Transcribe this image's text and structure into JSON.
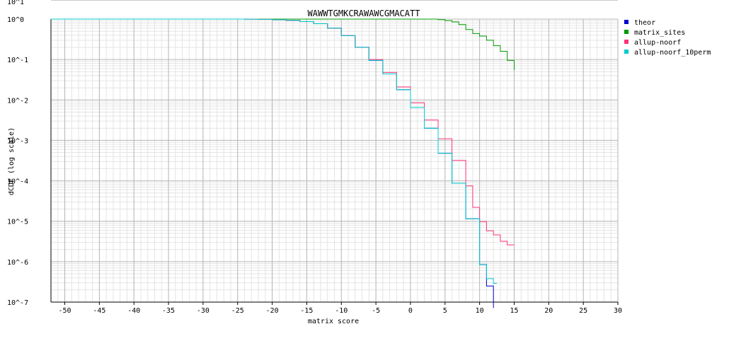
{
  "chart_data": {
    "type": "line",
    "title": "WAWWTGMKCRAWAWCGMACATT",
    "xlabel": "matrix score",
    "ylabel": "dCDF (log scale)",
    "top_partial_label": "10^1",
    "x_scale": "linear",
    "y_scale": "log",
    "xlim": [
      -52,
      30
    ],
    "ylim_exponents": [
      -7,
      0
    ],
    "xticks": [
      -50,
      -45,
      -40,
      -35,
      -30,
      -25,
      -20,
      -15,
      -10,
      -5,
      0,
      5,
      10,
      15,
      20,
      25,
      30
    ],
    "yticks": [
      "10^0",
      "10^-1",
      "10^-2",
      "10^-3",
      "10^-4",
      "10^-5",
      "10^-6",
      "10^-7"
    ],
    "grid": true,
    "legend_position": "right",
    "series": [
      {
        "name": "theor",
        "color": "#0000cc",
        "x": [
          -52,
          -30,
          -26,
          -24,
          -22,
          -20,
          -18,
          -16,
          -14,
          -12,
          -10,
          -8,
          -6,
          -4,
          -2,
          0,
          2,
          4,
          6,
          8,
          10,
          11,
          12
        ],
        "y": [
          1.0,
          0.9995,
          0.998,
          0.994,
          0.985,
          0.965,
          0.93,
          0.87,
          0.77,
          0.6,
          0.39,
          0.2,
          0.095,
          0.044,
          0.018,
          0.0065,
          0.002,
          0.00048,
          8.7e-05,
          1.15e-05,
          8.5e-07,
          2.5e-07,
          7.2e-08
        ]
      },
      {
        "name": "matrix_sites",
        "color": "#009900",
        "x": [
          -52,
          3,
          4,
          5,
          6,
          7,
          8,
          9,
          10,
          11,
          12,
          13,
          14,
          15
        ],
        "y": [
          1.0,
          1.0,
          0.97,
          0.92,
          0.85,
          0.73,
          0.55,
          0.44,
          0.38,
          0.3,
          0.22,
          0.16,
          0.095,
          0.055
        ]
      },
      {
        "name": "allup-noorf",
        "color": "#ff3377",
        "x": [
          -52,
          -30,
          -26,
          -24,
          -22,
          -20,
          -18,
          -16,
          -14,
          -12,
          -10,
          -8,
          -6,
          -4,
          -2,
          0,
          2,
          4,
          6,
          8,
          9,
          10,
          11,
          12,
          13,
          14,
          15
        ],
        "y": [
          1.0,
          0.9995,
          0.998,
          0.994,
          0.985,
          0.965,
          0.93,
          0.87,
          0.77,
          0.6,
          0.39,
          0.2,
          0.1,
          0.048,
          0.021,
          0.0085,
          0.0032,
          0.0011,
          0.00032,
          7.5e-05,
          2.2e-05,
          9.8e-06,
          5.8e-06,
          4.6e-06,
          3.2e-06,
          2.6e-06,
          2.6e-06
        ]
      },
      {
        "name": "allup-noorf_10perm",
        "color": "#00cccc",
        "x": [
          -52,
          -30,
          -26,
          -24,
          -22,
          -20,
          -18,
          -16,
          -14,
          -12,
          -10,
          -8,
          -6,
          -4,
          -2,
          0,
          2,
          4,
          6,
          8,
          10,
          11,
          12,
          12.5
        ],
        "y": [
          1.0,
          0.9995,
          0.998,
          0.994,
          0.985,
          0.965,
          0.93,
          0.87,
          0.77,
          0.6,
          0.39,
          0.2,
          0.095,
          0.044,
          0.018,
          0.0065,
          0.002,
          0.00048,
          8.7e-05,
          1.15e-05,
          8.5e-07,
          3.8e-07,
          2.9e-07,
          2.9e-07
        ]
      }
    ]
  }
}
